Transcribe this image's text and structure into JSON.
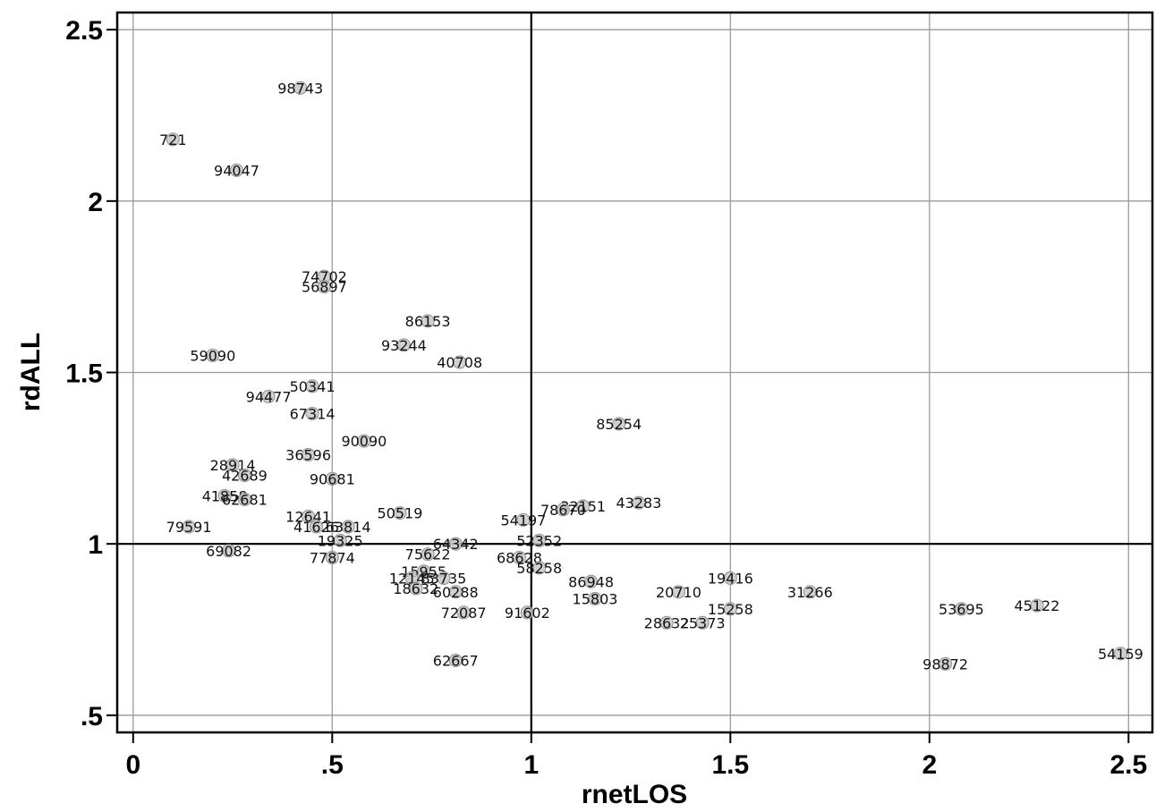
{
  "chart_data": {
    "type": "scatter",
    "xlabel": "rnetLOS",
    "ylabel": "rdALL",
    "xlim": [
      -0.04,
      2.56
    ],
    "ylim": [
      0.45,
      2.55
    ],
    "xticks": [
      {
        "value": 0,
        "label": "0"
      },
      {
        "value": 0.5,
        "label": ".5"
      },
      {
        "value": 1,
        "label": "1"
      },
      {
        "value": 1.5,
        "label": "1.5"
      },
      {
        "value": 2,
        "label": "2"
      },
      {
        "value": 2.5,
        "label": "2.5"
      }
    ],
    "yticks": [
      {
        "value": 0.5,
        "label": ".5"
      },
      {
        "value": 1,
        "label": "1"
      },
      {
        "value": 1.5,
        "label": "1.5"
      },
      {
        "value": 2,
        "label": "2"
      },
      {
        "value": 2.5,
        "label": "2.5"
      }
    ],
    "grid": true,
    "reference_lines": {
      "x": 1,
      "y": 1
    },
    "points": [
      {
        "label": "98743",
        "x": 0.42,
        "y": 2.33
      },
      {
        "label": "721",
        "x": 0.1,
        "y": 2.18
      },
      {
        "label": "94047",
        "x": 0.26,
        "y": 2.09
      },
      {
        "label": "74702",
        "x": 0.48,
        "y": 1.78
      },
      {
        "label": "56897",
        "x": 0.48,
        "y": 1.75
      },
      {
        "label": "86153",
        "x": 0.74,
        "y": 1.65
      },
      {
        "label": "93244",
        "x": 0.68,
        "y": 1.58
      },
      {
        "label": "40708",
        "x": 0.82,
        "y": 1.53
      },
      {
        "label": "59090",
        "x": 0.2,
        "y": 1.55
      },
      {
        "label": "50341",
        "x": 0.45,
        "y": 1.46
      },
      {
        "label": "94477",
        "x": 0.34,
        "y": 1.43
      },
      {
        "label": "67314",
        "x": 0.45,
        "y": 1.38
      },
      {
        "label": "85254",
        "x": 1.22,
        "y": 1.35
      },
      {
        "label": "90090",
        "x": 0.58,
        "y": 1.3
      },
      {
        "label": "36596",
        "x": 0.44,
        "y": 1.26
      },
      {
        "label": "28914",
        "x": 0.25,
        "y": 1.23
      },
      {
        "label": "42689",
        "x": 0.28,
        "y": 1.2
      },
      {
        "label": "90681",
        "x": 0.5,
        "y": 1.19
      },
      {
        "label": "41858",
        "x": 0.23,
        "y": 1.14
      },
      {
        "label": "62681",
        "x": 0.28,
        "y": 1.13
      },
      {
        "label": "43283",
        "x": 1.27,
        "y": 1.12
      },
      {
        "label": "32151",
        "x": 1.13,
        "y": 1.11
      },
      {
        "label": "78670",
        "x": 1.08,
        "y": 1.1
      },
      {
        "label": "50519",
        "x": 0.67,
        "y": 1.09
      },
      {
        "label": "12641",
        "x": 0.44,
        "y": 1.08
      },
      {
        "label": "54197",
        "x": 0.98,
        "y": 1.07
      },
      {
        "label": "79591",
        "x": 0.14,
        "y": 1.05
      },
      {
        "label": "41626",
        "x": 0.46,
        "y": 1.05
      },
      {
        "label": "63814",
        "x": 0.54,
        "y": 1.05
      },
      {
        "label": "19325",
        "x": 0.52,
        "y": 1.01
      },
      {
        "label": "52352",
        "x": 1.02,
        "y": 1.01
      },
      {
        "label": "64342",
        "x": 0.81,
        "y": 1.0
      },
      {
        "label": "69082",
        "x": 0.24,
        "y": 0.98
      },
      {
        "label": "75622",
        "x": 0.74,
        "y": 0.97
      },
      {
        "label": "77874",
        "x": 0.5,
        "y": 0.96
      },
      {
        "label": "68628",
        "x": 0.97,
        "y": 0.96
      },
      {
        "label": "58258",
        "x": 1.02,
        "y": 0.93
      },
      {
        "label": "15955",
        "x": 0.73,
        "y": 0.92
      },
      {
        "label": "19416",
        "x": 1.5,
        "y": 0.9
      },
      {
        "label": "12145",
        "x": 0.7,
        "y": 0.9
      },
      {
        "label": "83735",
        "x": 0.78,
        "y": 0.9
      },
      {
        "label": "86948",
        "x": 1.15,
        "y": 0.89
      },
      {
        "label": "18632",
        "x": 0.71,
        "y": 0.87
      },
      {
        "label": "60288",
        "x": 0.81,
        "y": 0.86
      },
      {
        "label": "31266",
        "x": 1.7,
        "y": 0.86
      },
      {
        "label": "20710",
        "x": 1.37,
        "y": 0.86
      },
      {
        "label": "15803",
        "x": 1.16,
        "y": 0.84
      },
      {
        "label": "15258",
        "x": 1.5,
        "y": 0.81
      },
      {
        "label": "53695",
        "x": 2.08,
        "y": 0.81
      },
      {
        "label": "45122",
        "x": 2.27,
        "y": 0.82
      },
      {
        "label": "72087",
        "x": 0.83,
        "y": 0.8
      },
      {
        "label": "91602",
        "x": 0.99,
        "y": 0.8
      },
      {
        "label": "28632",
        "x": 1.34,
        "y": 0.77
      },
      {
        "label": "25373",
        "x": 1.43,
        "y": 0.77
      },
      {
        "label": "54159",
        "x": 2.48,
        "y": 0.68
      },
      {
        "label": "62667",
        "x": 0.81,
        "y": 0.66
      },
      {
        "label": "98872",
        "x": 2.04,
        "y": 0.65
      }
    ]
  }
}
